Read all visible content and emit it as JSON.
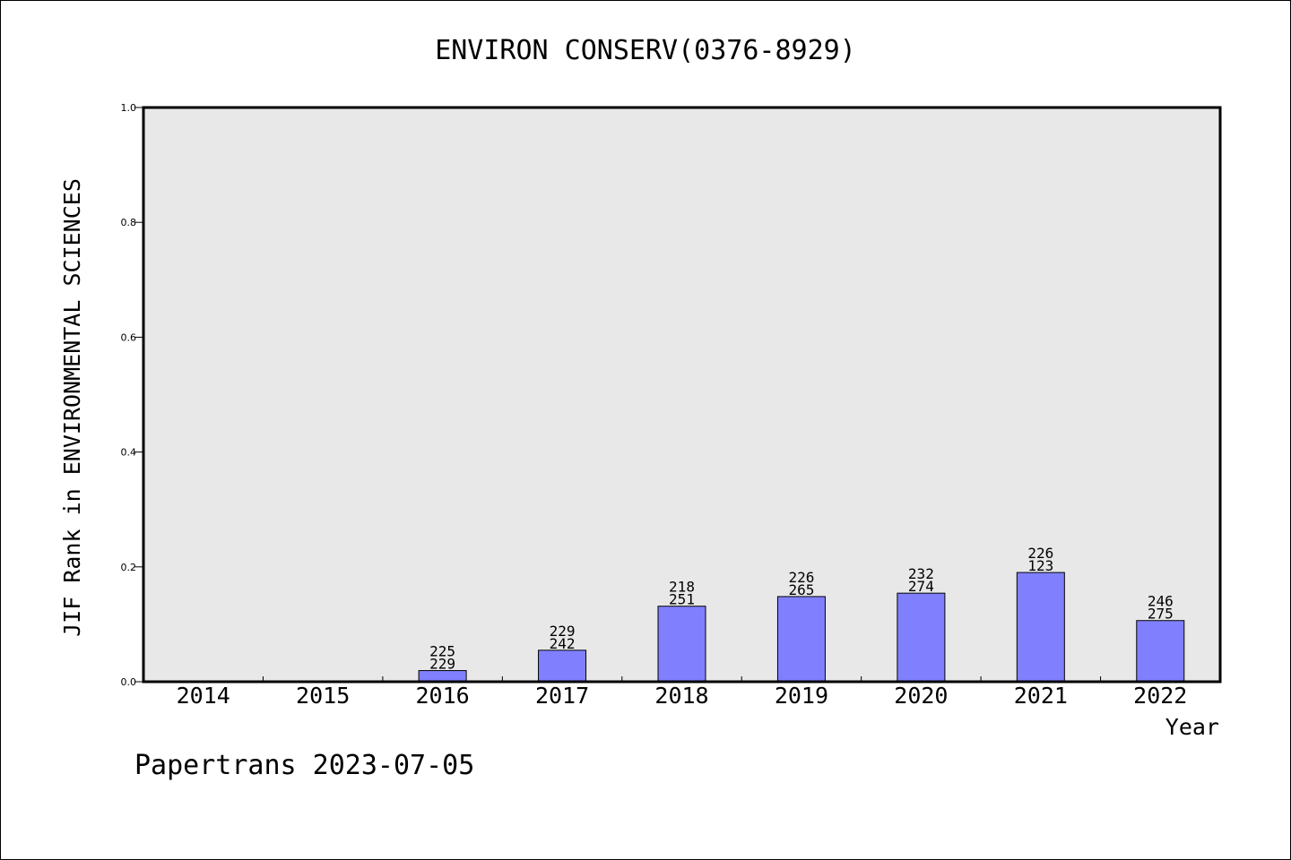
{
  "chart_data": {
    "type": "bar",
    "title": "ENVIRON CONSERV(0376-8929)",
    "xlabel": "Year",
    "ylabel": "JIF Rank in ENVIRONMENTAL SCIENCES",
    "categories": [
      "2014",
      "2015",
      "2016",
      "2017",
      "2018",
      "2019",
      "2020",
      "2021",
      "2022"
    ],
    "values": [
      0,
      0,
      0.0194,
      0.0548,
      0.1315,
      0.1483,
      0.1542,
      0.1902,
      0.1065
    ],
    "data_labels": [
      [
        "",
        ""
      ],
      [
        "",
        ""
      ],
      [
        "225",
        "229"
      ],
      [
        "229",
        "242"
      ],
      [
        "218",
        "251"
      ],
      [
        "226",
        "265"
      ],
      [
        "232",
        "274"
      ],
      [
        "226",
        "123"
      ],
      [
        "246",
        "275"
      ]
    ],
    "ylim": [
      0,
      1.0
    ],
    "yticks": [
      "0.0",
      "0.2",
      "0.4",
      "0.6",
      "0.8",
      "1.0"
    ],
    "grid": false,
    "colors": {
      "bar": "#8080ff",
      "plot_bg": "#e8e8e8"
    }
  },
  "footer": "Papertrans 2023-07-05"
}
